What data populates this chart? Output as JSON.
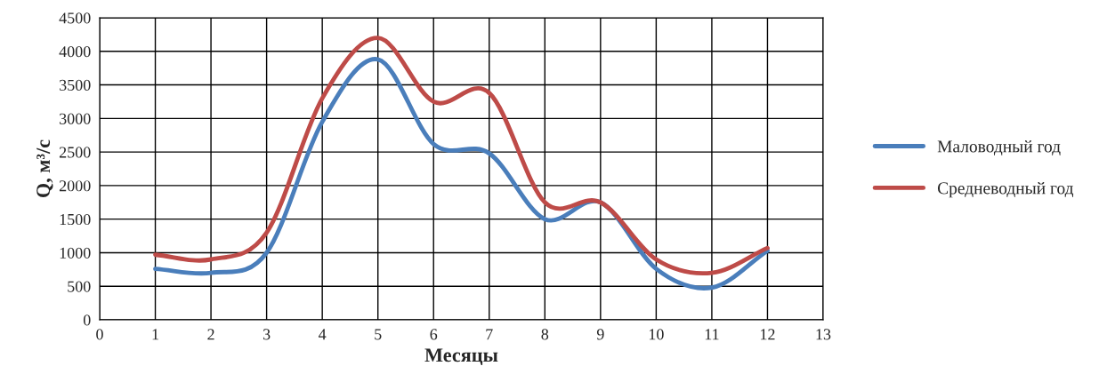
{
  "chart_data": {
    "type": "line",
    "xlabel": "Месяцы",
    "ylabel": "Q, м³/с",
    "x": [
      1,
      2,
      3,
      4,
      5,
      6,
      7,
      8,
      9,
      10,
      11,
      12
    ],
    "series": [
      {
        "name": "Маловодный год",
        "color": "#4a7ebb",
        "values": [
          760,
          700,
          1000,
          2950,
          3880,
          2620,
          2480,
          1500,
          1750,
          760,
          480,
          1030
        ]
      },
      {
        "name": "Средневодный год",
        "color": "#be4b48",
        "values": [
          970,
          900,
          1300,
          3300,
          4200,
          3250,
          3380,
          1750,
          1750,
          900,
          700,
          1070
        ]
      }
    ],
    "xlim": [
      0,
      13
    ],
    "xticks": [
      0,
      1,
      2,
      3,
      4,
      5,
      6,
      7,
      8,
      9,
      10,
      11,
      12,
      13
    ],
    "ylim": [
      0,
      4500
    ],
    "yticks": [
      0,
      500,
      1000,
      1500,
      2000,
      2500,
      3000,
      3500,
      4000,
      4500
    ],
    "grid": true,
    "legend": "right",
    "marker": "none",
    "line_style": "solid"
  }
}
